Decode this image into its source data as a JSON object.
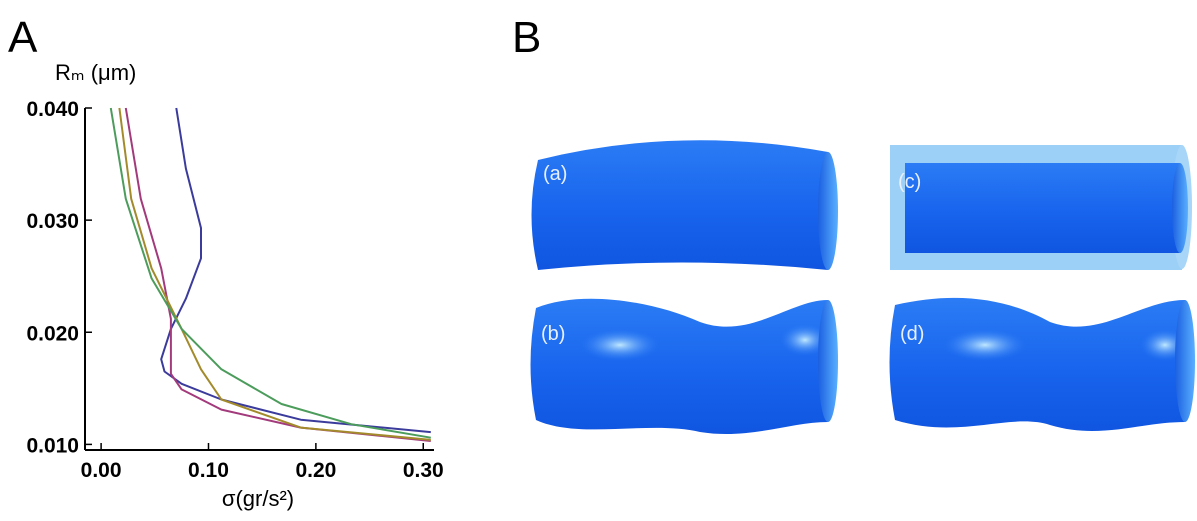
{
  "panel_labels": [
    "A",
    "B"
  ],
  "figure_labels": [
    "(a)",
    "(b)",
    "(c)",
    "(d)"
  ],
  "chart_data": {
    "type": "line",
    "xlabel": "σ(gr/s²)",
    "ylabel": "Rₘ (μm)",
    "xlim": [
      -0.015,
      0.31
    ],
    "ylim": [
      0.0095,
      0.04
    ],
    "xticks": [
      {
        "value": 0,
        "label": "0.00"
      },
      {
        "value": 0.1,
        "label": "0.10"
      },
      {
        "value": 0.2,
        "label": "0.20"
      },
      {
        "value": 0.3,
        "label": "0.30"
      }
    ],
    "yticks": [
      {
        "value": 0.01,
        "label": "0.010"
      },
      {
        "value": 0.02,
        "label": "0.020"
      },
      {
        "value": 0.03,
        "label": "0.030"
      },
      {
        "value": 0.04,
        "label": "0.040"
      }
    ],
    "grid": false,
    "series": [
      {
        "color": "#3b3b9c",
        "x": [
          0.07,
          0.079,
          0.093,
          0.093,
          0.079,
          0.065,
          0.056,
          0.059,
          0.075,
          0.112,
          0.186,
          0.307
        ],
        "values": [
          0.04,
          0.0346,
          0.0293,
          0.0266,
          0.023,
          0.0203,
          0.0176,
          0.0165,
          0.0154,
          0.014,
          0.0122,
          0.0111
        ]
      },
      {
        "color": "#a23a7c",
        "x": [
          0.023,
          0.037,
          0.056,
          0.065,
          0.065,
          0.075,
          0.112,
          0.186,
          0.307
        ],
        "values": [
          0.04,
          0.0319,
          0.0257,
          0.0212,
          0.0163,
          0.0149,
          0.0131,
          0.0115,
          0.0103
        ]
      },
      {
        "color": "#a38b2c",
        "x": [
          0.017,
          0.028,
          0.047,
          0.075,
          0.093,
          0.112,
          0.186,
          0.307
        ],
        "values": [
          0.04,
          0.0319,
          0.0257,
          0.0203,
          0.0167,
          0.014,
          0.0115,
          0.0104
        ]
      },
      {
        "color": "#4c9c5c",
        "x": [
          0.009,
          0.023,
          0.047,
          0.075,
          0.112,
          0.168,
          0.233,
          0.307
        ],
        "values": [
          0.04,
          0.0319,
          0.0248,
          0.0203,
          0.0167,
          0.0136,
          0.0118,
          0.0106
        ]
      }
    ]
  }
}
